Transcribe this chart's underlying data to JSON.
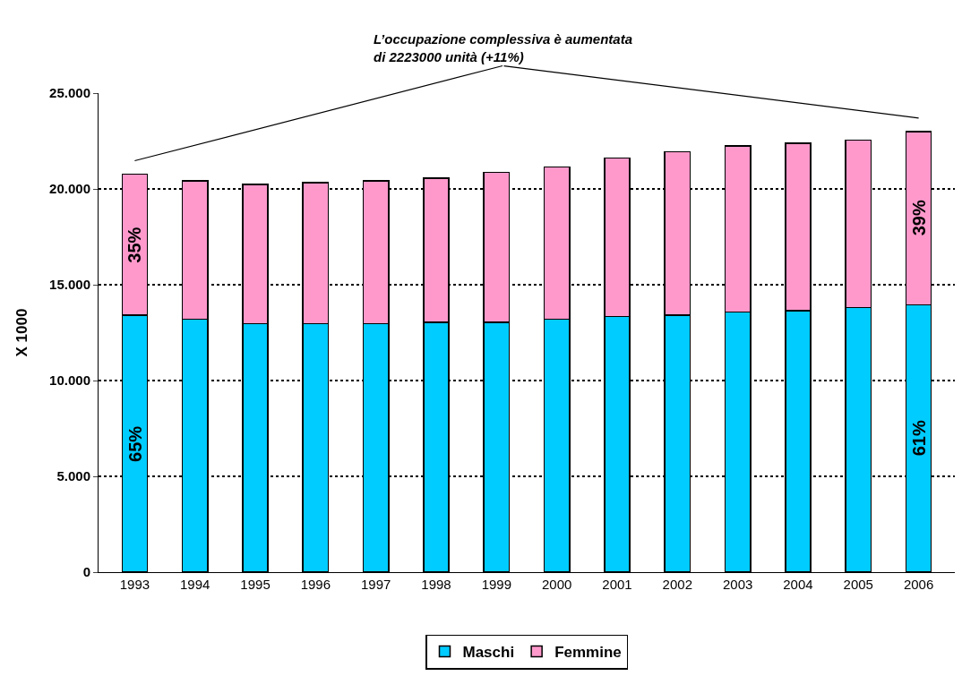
{
  "chart_data": {
    "type": "bar",
    "stacked": true,
    "ylabel": "X 1000",
    "categories": [
      "1993",
      "1994",
      "1995",
      "1996",
      "1997",
      "1998",
      "1999",
      "2000",
      "2001",
      "2002",
      "2003",
      "2004",
      "2005",
      "2006"
    ],
    "series": [
      {
        "name": "Maschi",
        "color": "#00ccff",
        "values": [
          13410,
          13200,
          12970,
          12970,
          12970,
          13030,
          13030,
          13200,
          13350,
          13410,
          13570,
          13650,
          13800,
          13950
        ]
      },
      {
        "name": "Femmine",
        "color": "#ff99cc",
        "values": [
          7360,
          7210,
          7270,
          7350,
          7440,
          7520,
          7830,
          7950,
          8260,
          8520,
          8670,
          8740,
          8740,
          9050
        ]
      }
    ],
    "ylim": [
      0,
      25000
    ],
    "yticks": [
      {
        "value": 0,
        "label": "0"
      },
      {
        "value": 5000,
        "label": "5.000"
      },
      {
        "value": 10000,
        "label": "10.000"
      },
      {
        "value": 15000,
        "label": "15.000"
      },
      {
        "value": 20000,
        "label": "20.000"
      },
      {
        "value": 25000,
        "label": "25.000"
      }
    ],
    "grid": "y",
    "legend": "bottom",
    "annotations": [
      "L’occupazione complessiva è aumentata\ndi 2223000 unità (+11%)",
      "65%",
      "35%",
      "61%",
      "39%"
    ]
  }
}
